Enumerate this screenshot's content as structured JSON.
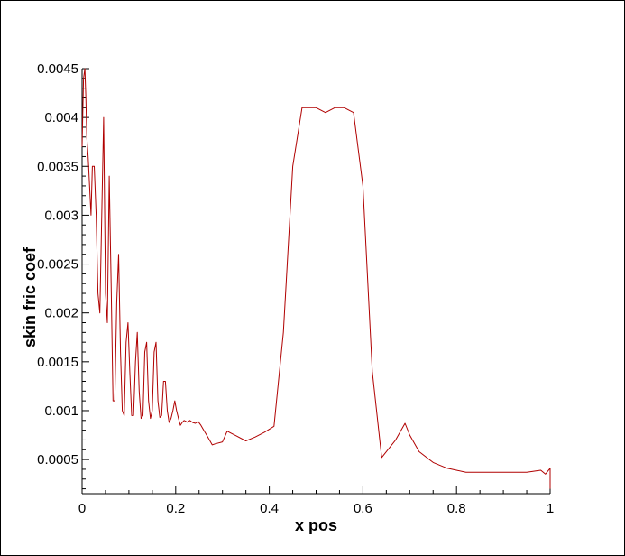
{
  "chart_data": {
    "type": "line",
    "xlabel": "x pos",
    "ylabel": "skin fric coef",
    "xlim": [
      0,
      1
    ],
    "ylim": [
      0.00015,
      0.0045
    ],
    "xticks": [
      {
        "value": 0,
        "label": "0"
      },
      {
        "value": 0.2,
        "label": "0.2"
      },
      {
        "value": 0.4,
        "label": "0.4"
      },
      {
        "value": 0.6,
        "label": "0.6"
      },
      {
        "value": 0.8,
        "label": "0.8"
      },
      {
        "value": 1,
        "label": "1"
      }
    ],
    "yticks": [
      {
        "value": 0.0005,
        "label": "0.0005"
      },
      {
        "value": 0.001,
        "label": "0.001"
      },
      {
        "value": 0.0015,
        "label": "0.0015"
      },
      {
        "value": 0.002,
        "label": "0.002"
      },
      {
        "value": 0.0025,
        "label": "0.0025"
      },
      {
        "value": 0.003,
        "label": "0.003"
      },
      {
        "value": 0.0035,
        "label": "0.0035"
      },
      {
        "value": 0.004,
        "label": "0.004"
      },
      {
        "value": 0.0045,
        "label": "0.0045"
      }
    ],
    "grid": false,
    "line_color": "#b00000",
    "series": [
      {
        "x": [
          0,
          0.003,
          0.006,
          0.008,
          0.01,
          0.013,
          0.016,
          0.019,
          0.022,
          0.026,
          0.03,
          0.034,
          0.038,
          0.042,
          0.046,
          0.05,
          0.054,
          0.058,
          0.062,
          0.066,
          0.07,
          0.074,
          0.078,
          0.082,
          0.086,
          0.09,
          0.094,
          0.098,
          0.102,
          0.106,
          0.11,
          0.114,
          0.118,
          0.122,
          0.126,
          0.13,
          0.134,
          0.138,
          0.142,
          0.146,
          0.15,
          0.154,
          0.158,
          0.162,
          0.166,
          0.17,
          0.174,
          0.178,
          0.182,
          0.186,
          0.19,
          0.194,
          0.198,
          0.202,
          0.206,
          0.21,
          0.214,
          0.218,
          0.222,
          0.226,
          0.23,
          0.236,
          0.242,
          0.248,
          0.254,
          0.26,
          0.266,
          0.272,
          0.278,
          0.284,
          0.3,
          0.31,
          0.33,
          0.35,
          0.37,
          0.39,
          0.41,
          0.43,
          0.45,
          0.47,
          0.48,
          0.5,
          0.52,
          0.54,
          0.56,
          0.58,
          0.6,
          0.62,
          0.64,
          0.67,
          0.69,
          0.7,
          0.72,
          0.75,
          0.78,
          0.8,
          0.82,
          0.85,
          0.9,
          0.95,
          0.98,
          0.99,
          1.0,
          1.0
        ],
        "values": [
          0.0037,
          0.0044,
          0.0045,
          0.0042,
          0.0038,
          0.0036,
          0.0033,
          0.003,
          0.0035,
          0.0035,
          0.003,
          0.0022,
          0.002,
          0.003,
          0.004,
          0.0022,
          0.0019,
          0.0034,
          0.0023,
          0.0011,
          0.0011,
          0.0021,
          0.0026,
          0.0016,
          0.001,
          0.00095,
          0.0017,
          0.0019,
          0.0014,
          0.00095,
          0.00095,
          0.0015,
          0.0018,
          0.0012,
          0.00092,
          0.00095,
          0.0016,
          0.0017,
          0.0011,
          0.00092,
          0.001,
          0.0016,
          0.0017,
          0.0011,
          0.00093,
          0.00095,
          0.0013,
          0.0013,
          0.001,
          0.00088,
          0.00092,
          0.001,
          0.0011,
          0.001,
          0.00092,
          0.00085,
          0.00088,
          0.0009,
          0.00089,
          0.00088,
          0.0009,
          0.00088,
          0.00087,
          0.00089,
          0.00085,
          0.0008,
          0.00075,
          0.0007,
          0.00065,
          0.00066,
          0.00068,
          0.00079,
          0.00074,
          0.00069,
          0.00073,
          0.00078,
          0.00084,
          0.0018,
          0.0035,
          0.0041,
          0.0041,
          0.0041,
          0.00405,
          0.0041,
          0.0041,
          0.00405,
          0.0033,
          0.0014,
          0.00052,
          0.0007,
          0.00087,
          0.00075,
          0.00058,
          0.00047,
          0.00041,
          0.00039,
          0.00037,
          0.00037,
          0.00037,
          0.00037,
          0.00039,
          0.00035,
          0.00041,
          0.0002
        ]
      }
    ]
  }
}
